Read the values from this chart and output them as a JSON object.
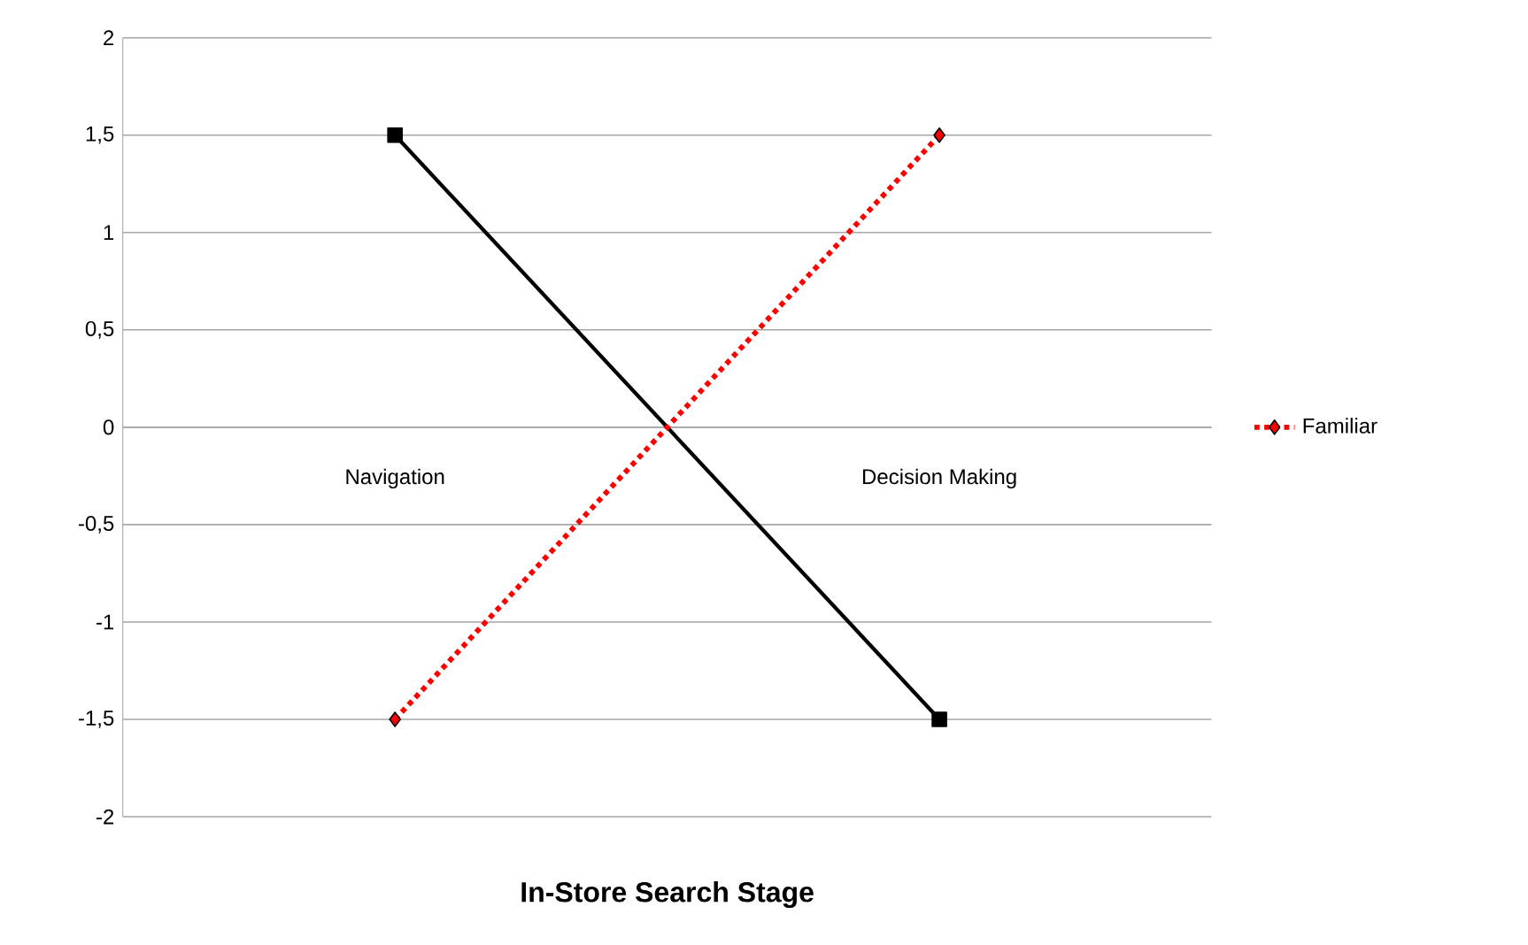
{
  "chart_data": {
    "type": "line",
    "xlabel": "In-Store Search Stage",
    "categories": [
      "Navigation",
      "Decision Making"
    ],
    "series": [
      {
        "color": "#000000",
        "values": [
          1.5,
          -1.5
        ],
        "marker": "square",
        "line_style": "solid"
      },
      {
        "name": "Familiar",
        "color": "#ff0000",
        "values": [
          -1.5,
          1.5
        ],
        "marker": "diamond",
        "line_style": "dotted"
      }
    ],
    "ylim": [
      -2,
      2
    ],
    "yticks": [
      {
        "value": -2,
        "label": "-2"
      },
      {
        "value": -1.5,
        "label": "-1,5"
      },
      {
        "value": -1,
        "label": "-1"
      },
      {
        "value": -0.5,
        "label": "-0,5"
      },
      0,
      {
        "value": 0.5,
        "label": "0,5"
      },
      1,
      {
        "value": 1.5,
        "label": "1,5"
      },
      2
    ],
    "grid": "y",
    "legend": "right"
  }
}
